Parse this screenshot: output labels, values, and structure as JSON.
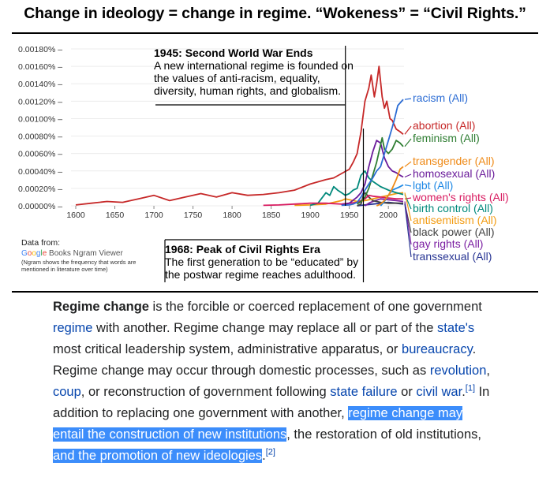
{
  "headline": "Change in ideology = change in regime. “Wokeness” = “Civil Rights.”",
  "chart_data": {
    "type": "line",
    "xlim": [
      1600,
      2020
    ],
    "ylim": [
      0,
      0.0018
    ],
    "x_ticks": [
      "1600",
      "1650",
      "1700",
      "1750",
      "1800",
      "1850",
      "1900",
      "1950",
      "2000"
    ],
    "y_ticks": [
      "0.00180%",
      "0.00160%",
      "0.00140%",
      "0.00120%",
      "0.00100%",
      "0.00080%",
      "0.00060%",
      "0.00040%",
      "0.00020%",
      "0.00000%"
    ],
    "grid": true,
    "legend": "right, at line ends",
    "series": [
      {
        "name": "racism (All)",
        "color": "#2b6cd4",
        "x": [
          1940,
          1950,
          1955,
          1960,
          1965,
          1970,
          1975,
          1980,
          1985,
          1990,
          1995,
          2000,
          2005,
          2008,
          2012,
          2019
        ],
        "y": [
          5e-06,
          1e-05,
          2e-05,
          4e-05,
          0.0001,
          0.00018,
          0.00025,
          0.00032,
          0.0004,
          0.00045,
          0.0006,
          0.00075,
          0.0009,
          0.001,
          0.00115,
          0.00122
        ]
      },
      {
        "name": "abortion (All)",
        "color": "#c62828",
        "x": [
          1600,
          1620,
          1640,
          1660,
          1680,
          1700,
          1720,
          1740,
          1760,
          1780,
          1800,
          1820,
          1840,
          1860,
          1880,
          1900,
          1920,
          1930,
          1940,
          1950,
          1955,
          1960,
          1965,
          1970,
          1975,
          1978,
          1982,
          1985,
          1988,
          1992,
          1995,
          1998,
          2002,
          2005,
          2010,
          2015,
          2019
        ],
        "y": [
          1e-05,
          3e-05,
          5e-05,
          4e-05,
          8e-05,
          0.00012,
          6e-05,
          0.0001,
          0.00014,
          0.0001,
          0.00015,
          0.00012,
          0.00013,
          0.00015,
          0.00018,
          0.00025,
          0.0003,
          0.00032,
          0.00037,
          0.00042,
          0.0005,
          0.0006,
          0.00085,
          0.0012,
          0.00135,
          0.0015,
          0.00125,
          0.0014,
          0.0016,
          0.00125,
          0.00112,
          0.0012,
          0.001,
          0.00098,
          0.00088,
          0.00085,
          0.00082
        ]
      },
      {
        "name": "feminism (All)",
        "color": "#2e7d32",
        "x": [
          1960,
          1965,
          1970,
          1975,
          1980,
          1985,
          1990,
          1992,
          1995,
          2000,
          2005,
          2010,
          2015,
          2019
        ],
        "y": [
          2e-05,
          5e-05,
          0.0001,
          0.0002,
          0.00035,
          0.0005,
          0.0007,
          0.00078,
          0.00065,
          0.0006,
          0.00065,
          0.00075,
          0.00072,
          0.00068
        ]
      },
      {
        "name": "transgender (All)",
        "color": "#ef8a17",
        "x": [
          1985,
          1990,
          1995,
          2000,
          2005,
          2010,
          2015,
          2019
        ],
        "y": [
          0.0,
          2e-05,
          6e-05,
          0.00012,
          0.0002,
          0.0003,
          0.00042,
          0.00045
        ]
      },
      {
        "name": "homosexual (All)",
        "color": "#6a1b9a",
        "x": [
          1940,
          1950,
          1960,
          1965,
          1970,
          1975,
          1980,
          1985,
          1990,
          1995,
          2000,
          2005,
          2010,
          2015,
          2019
        ],
        "y": [
          1e-05,
          3e-05,
          0.0001,
          0.00015,
          0.00025,
          0.00045,
          0.00062,
          0.00075,
          0.00072,
          0.00055,
          0.00045,
          0.0004,
          0.00038,
          0.00035,
          0.00033
        ]
      },
      {
        "name": "lgbt (All)",
        "color": "#1e88e5",
        "x": [
          1990,
          1995,
          2000,
          2005,
          2010,
          2015,
          2019
        ],
        "y": [
          0.0,
          5e-05,
          0.00012,
          0.00018,
          0.0002,
          0.00022,
          0.00024
        ]
      },
      {
        "name": "women's rights (All)",
        "color": "#d81b60",
        "x": [
          1840,
          1860,
          1880,
          1900,
          1920,
          1940,
          1950,
          1960,
          1970,
          1975,
          1980,
          1990,
          2000,
          2010,
          2019
        ],
        "y": [
          5e-06,
          1e-05,
          2e-05,
          3e-05,
          3e-05,
          2e-05,
          3e-05,
          4e-05,
          8e-05,
          0.00012,
          0.00011,
          0.0001,
          9e-05,
          8e-05,
          8e-05
        ]
      },
      {
        "name": "birth control (All)",
        "color": "#00897b",
        "x": [
          1900,
          1910,
          1920,
          1925,
          1930,
          1935,
          1940,
          1945,
          1950,
          1955,
          1960,
          1965,
          1970,
          1975,
          1980,
          1990,
          2000,
          2010,
          2019
        ],
        "y": [
          5e-06,
          3e-05,
          0.00015,
          0.00012,
          0.00022,
          0.00018,
          0.00015,
          0.00012,
          0.00014,
          0.00018,
          0.0002,
          0.00035,
          0.0004,
          0.00032,
          0.00028,
          0.00022,
          0.00018,
          0.00015,
          0.00013
        ]
      },
      {
        "name": "antisemitism (All)",
        "color": "#f39c12",
        "x": [
          1880,
          1900,
          1920,
          1940,
          1945,
          1950,
          1960,
          1970,
          1980,
          1990,
          2000,
          2010,
          2019
        ],
        "y": [
          5e-06,
          1e-05,
          2e-05,
          6e-05,
          8e-05,
          7e-05,
          5e-05,
          6e-05,
          8e-05,
          0.0001,
          0.00012,
          0.00014,
          0.00015
        ]
      },
      {
        "name": "black power (All)",
        "color": "#424242",
        "x": [
          1960,
          1965,
          1968,
          1970,
          1975,
          1980,
          1990,
          2000,
          2010,
          2019
        ],
        "y": [
          0.0,
          2e-05,
          0.00012,
          0.00015,
          0.0001,
          6e-05,
          4e-05,
          3e-05,
          3e-05,
          3e-05
        ]
      },
      {
        "name": "gay rights (All)",
        "color": "#7b1fa2",
        "x": [
          1970,
          1975,
          1980,
          1990,
          2000,
          2010,
          2019
        ],
        "y": [
          0.0,
          3e-05,
          5e-05,
          8e-05,
          7e-05,
          6e-05,
          5e-05
        ]
      },
      {
        "name": "transsexual (All)",
        "color": "#283593",
        "x": [
          1960,
          1970,
          1980,
          1990,
          2000,
          2010,
          2019
        ],
        "y": [
          0.0,
          1e-05,
          2e-05,
          3e-05,
          4e-05,
          3e-05,
          2e-05
        ]
      }
    ],
    "annotations": [
      {
        "x": 1945,
        "title": "1945: Second World War Ends",
        "text": "A new international regime is founded on the values of anti-racism, equality, diversity, human rights, and globalism."
      },
      {
        "x": 1968,
        "title": "1968: Peak of Civil Rights Era",
        "text": "The first generation to be “educated” by the postwar regime reaches adulthood."
      }
    ]
  },
  "source": {
    "label": "Data from:",
    "google": [
      "G",
      "o",
      "o",
      "g",
      "l",
      "e"
    ],
    "books": " Books Ngram Viewer",
    "note": "(Ngram shows the frequency that words are mentioned in literature over time)"
  },
  "article": {
    "term": "Regime change",
    "t1": " is the forcible or coerced replacement of one government ",
    "l_regime": "regime",
    "t2": " with another. Regime change may replace all or part of the ",
    "l_states": "state's",
    "t3": " most critical leadership system, administrative apparatus, or ",
    "l_bureaucracy": "bureaucracy",
    "t4": ". Regime change may occur through domestic processes, such as ",
    "l_revolution": "revolution",
    "t5": ", ",
    "l_coup": "coup",
    "t6": ", or reconstruction of government following ",
    "l_state_failure": "state failure",
    "t7": " or ",
    "l_civil_war": "civil war",
    "t8": ".",
    "ref1": "[1]",
    "t9": " In addition to replacing one government with another, ",
    "hl1": "regime change may entail the construction of new institutions",
    "t10": ", the restoration of old institutions, ",
    "hl2": "and the promotion of new ideologies",
    "t11": ".",
    "ref2": "[2]"
  }
}
